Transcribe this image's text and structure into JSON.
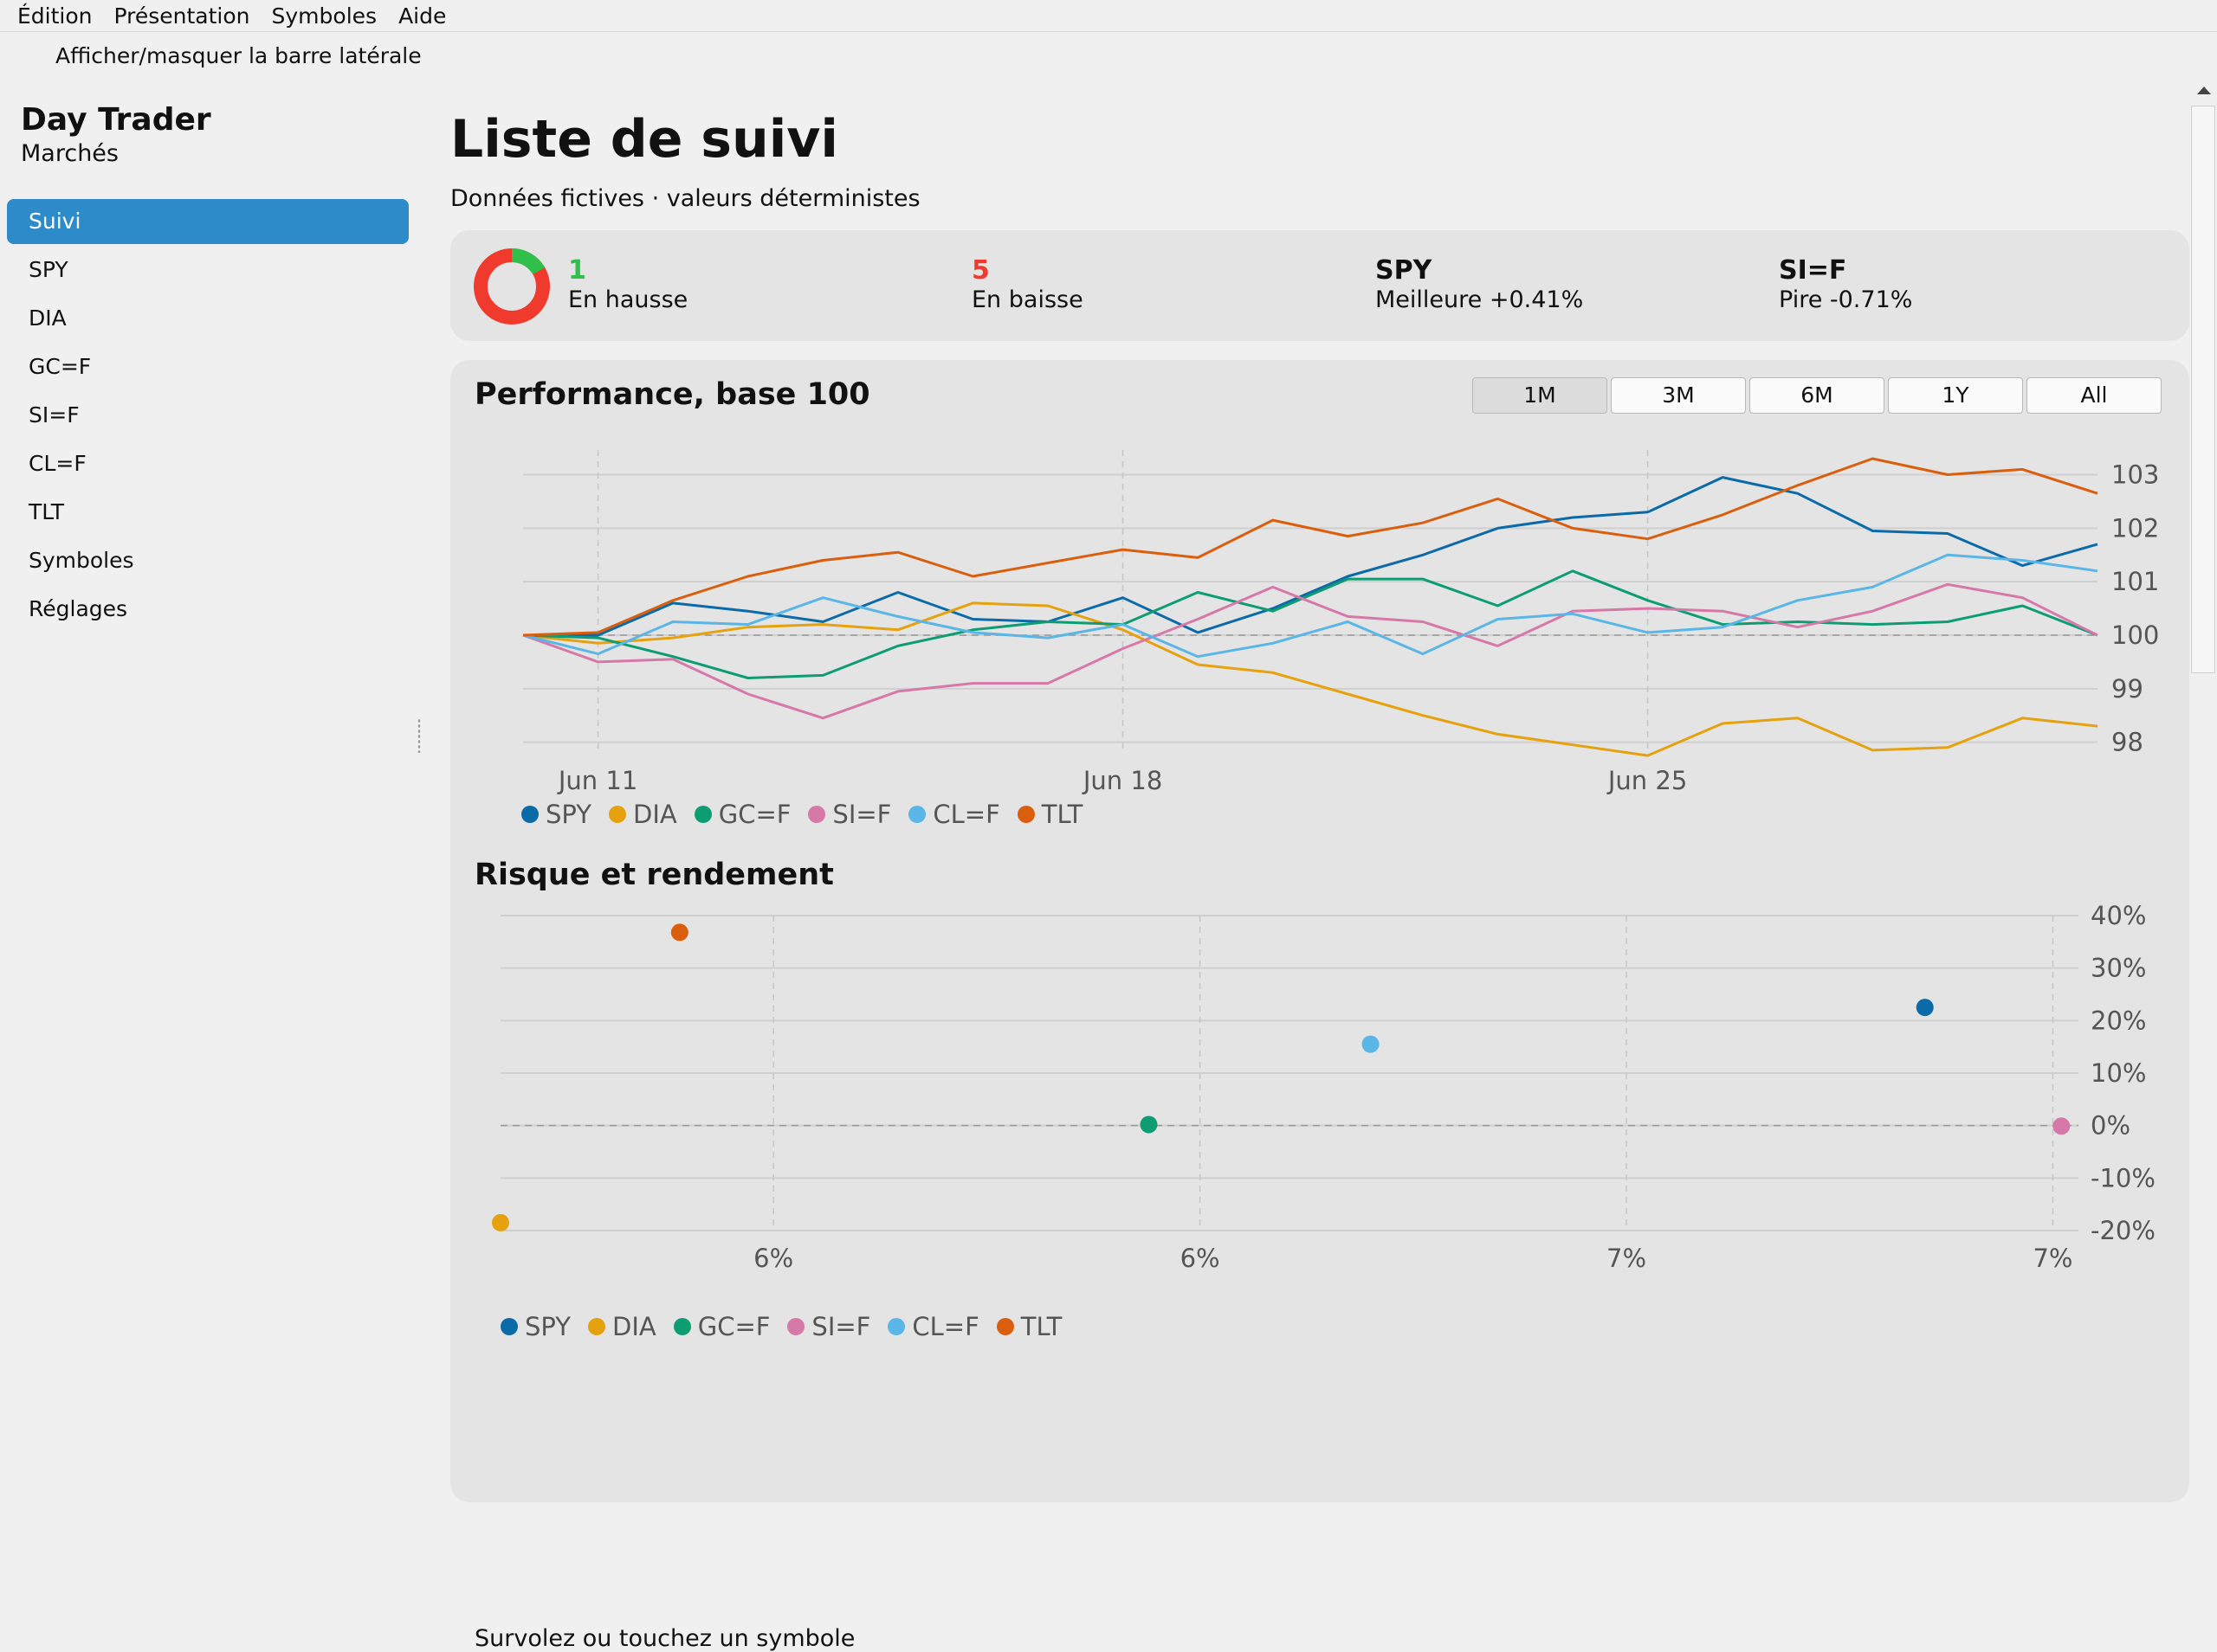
{
  "menu": [
    "Édition",
    "Présentation",
    "Symboles",
    "Aide"
  ],
  "toggle_label": "Afficher/masquer la barre latérale",
  "sidebar": {
    "title": "Day Trader",
    "subtitle": "Marchés",
    "items": [
      {
        "label": "Suivi",
        "active": true
      },
      {
        "label": "SPY"
      },
      {
        "label": "DIA"
      },
      {
        "label": "GC=F"
      },
      {
        "label": "SI=F"
      },
      {
        "label": "CL=F"
      },
      {
        "label": "TLT"
      },
      {
        "label": "Symboles"
      },
      {
        "label": "Réglages"
      }
    ]
  },
  "main": {
    "title": "Liste de suivi",
    "subtitle": "Données fictives · valeurs déterministes",
    "summary": {
      "up_count": "1",
      "up_label": "En hausse",
      "down_count": "5",
      "down_label": "En baisse",
      "best_symbol": "SPY",
      "best_label": "Meilleure +0.41%",
      "worst_symbol": "SI=F",
      "worst_label": "Pire -0.71%",
      "up_color": "#2fbf4a",
      "down_color": "#f03a2e"
    },
    "performance_title": "Performance, base 100",
    "ranges": [
      {
        "label": "1M",
        "active": true
      },
      {
        "label": "3M"
      },
      {
        "label": "6M"
      },
      {
        "label": "1Y"
      },
      {
        "label": "All"
      }
    ],
    "risk_title": "Risque et rendement",
    "hint": "Survolez ou touchez un symbole"
  },
  "colors": {
    "SPY": "#0b6aa8",
    "DIA": "#e5a10e",
    "GC=F": "#0e9d72",
    "SI=F": "#d678a8",
    "CL=F": "#5ab6e6",
    "TLT": "#d95f0e"
  },
  "chart_data": [
    {
      "type": "line",
      "title": "Performance, base 100",
      "x": [
        "Jun 10",
        "Jun 11",
        "Jun 12",
        "Jun 13",
        "Jun 14",
        "Jun 15",
        "Jun 16",
        "Jun 17",
        "Jun 18",
        "Jun 19",
        "Jun 20",
        "Jun 21",
        "Jun 22",
        "Jun 23",
        "Jun 24",
        "Jun 25",
        "Jun 26",
        "Jun 27",
        "Jun 28",
        "Jun 29",
        "Jun 30",
        "Jul 1"
      ],
      "xticks": [
        "Jun 11",
        "Jun 18",
        "Jun 25"
      ],
      "yticks": [
        98,
        99,
        100,
        101,
        102,
        103
      ],
      "ylim": [
        97.8,
        103.3
      ],
      "baseline": 100,
      "grid": true,
      "legend_position": "bottom-left",
      "series": [
        {
          "name": "SPY",
          "values": [
            100,
            100.0,
            100.6,
            100.45,
            100.25,
            100.8,
            100.3,
            100.25,
            100.7,
            100.05,
            100.5,
            101.1,
            101.5,
            102.0,
            102.2,
            102.3,
            102.95,
            102.65,
            101.95,
            101.9,
            101.3,
            101.7
          ]
        },
        {
          "name": "DIA",
          "values": [
            100,
            99.85,
            99.95,
            100.15,
            100.2,
            100.1,
            100.6,
            100.55,
            100.1,
            99.45,
            99.3,
            98.9,
            98.5,
            98.15,
            97.95,
            97.75,
            98.35,
            98.45,
            97.85,
            97.9,
            98.45,
            98.3
          ]
        },
        {
          "name": "GC=F",
          "values": [
            100,
            99.95,
            99.6,
            99.2,
            99.25,
            99.8,
            100.1,
            100.25,
            100.2,
            100.8,
            100.45,
            101.05,
            101.05,
            100.55,
            101.2,
            100.65,
            100.2,
            100.25,
            100.2,
            100.25,
            100.55,
            100.0
          ]
        },
        {
          "name": "SI=F",
          "values": [
            100,
            99.5,
            99.55,
            98.9,
            98.45,
            98.95,
            99.1,
            99.1,
            99.75,
            100.3,
            100.9,
            100.35,
            100.25,
            99.8,
            100.45,
            100.5,
            100.45,
            100.15,
            100.45,
            100.95,
            100.7,
            100.0
          ]
        },
        {
          "name": "CL=F",
          "values": [
            100,
            99.65,
            100.25,
            100.2,
            100.7,
            100.35,
            100.05,
            99.95,
            100.2,
            99.6,
            99.85,
            100.25,
            99.65,
            100.3,
            100.4,
            100.05,
            100.15,
            100.65,
            100.9,
            101.5,
            101.4,
            101.2
          ]
        },
        {
          "name": "TLT",
          "values": [
            100,
            100.05,
            100.65,
            101.1,
            101.4,
            101.55,
            101.1,
            101.35,
            101.6,
            101.45,
            102.15,
            101.85,
            102.1,
            102.55,
            102.0,
            101.8,
            102.25,
            102.8,
            103.3,
            103.0,
            103.1,
            102.65
          ]
        }
      ]
    },
    {
      "type": "scatter",
      "title": "Risque et rendement",
      "xticks": [
        "6%",
        "6%",
        "7%",
        "7%"
      ],
      "xtick_values": [
        5.5,
        6.0,
        6.5,
        7.0
      ],
      "xlim": [
        5.18,
        7.03
      ],
      "yticks": [
        "40%",
        "30%",
        "20%",
        "10%",
        "0%",
        "-10%",
        "-20%"
      ],
      "ytick_values": [
        40,
        30,
        20,
        10,
        0,
        -10,
        -20
      ],
      "ylim": [
        -20,
        40
      ],
      "baseline": 0,
      "grid": true,
      "legend_position": "bottom-left",
      "points": [
        {
          "name": "SPY",
          "x": 6.85,
          "y": 22.5
        },
        {
          "name": "DIA",
          "x": 5.18,
          "y": -18.5
        },
        {
          "name": "GC=F",
          "x": 5.94,
          "y": 0.2
        },
        {
          "name": "SI=F",
          "x": 7.01,
          "y": -0.1
        },
        {
          "name": "CL=F",
          "x": 6.2,
          "y": 15.5
        },
        {
          "name": "TLT",
          "x": 5.39,
          "y": 36.8
        }
      ]
    }
  ]
}
